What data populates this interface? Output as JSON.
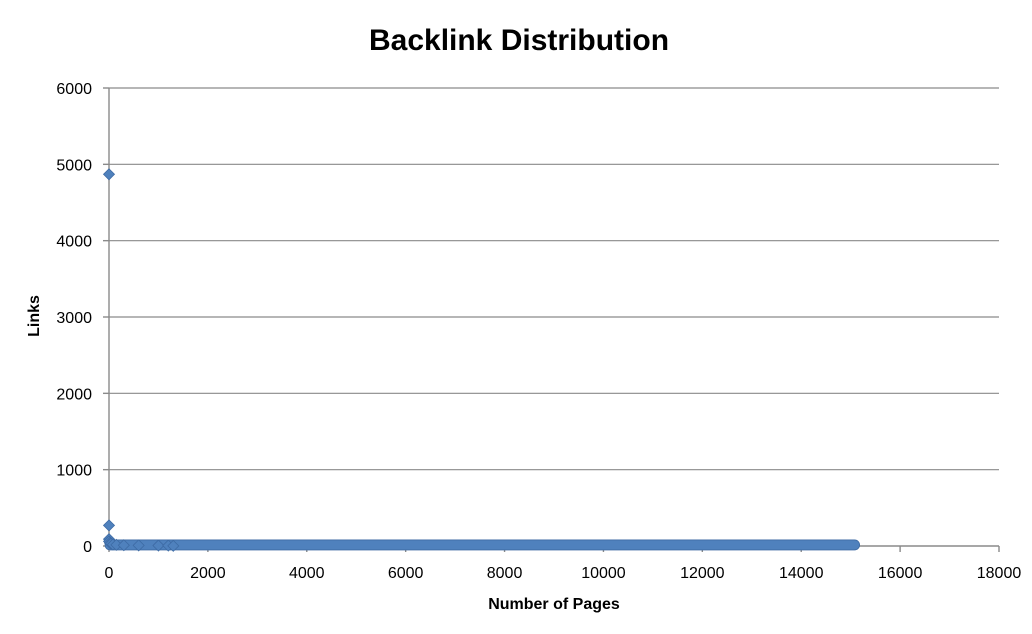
{
  "chart_data": {
    "type": "scatter",
    "title": "Backlink Distribution",
    "xlabel": "Number of Pages",
    "ylabel": "Links",
    "xlim": [
      0,
      18000
    ],
    "ylim": [
      0,
      6000
    ],
    "xticks": [
      0,
      2000,
      4000,
      6000,
      8000,
      10000,
      12000,
      14000,
      16000,
      18000
    ],
    "yticks": [
      0,
      1000,
      2000,
      3000,
      4000,
      5000,
      6000
    ],
    "grid": "horizontal",
    "legend": "none",
    "series_color": "#4f81bd",
    "points": [
      {
        "x": 0,
        "y": 4870
      },
      {
        "x": 0,
        "y": 270
      },
      {
        "x": 0,
        "y": 90
      },
      {
        "x": 0,
        "y": 60
      },
      {
        "x": 20,
        "y": 40
      },
      {
        "x": 40,
        "y": 30
      },
      {
        "x": 80,
        "y": 20
      },
      {
        "x": 150,
        "y": 15
      },
      {
        "x": 300,
        "y": 10
      },
      {
        "x": 600,
        "y": 8
      },
      {
        "x": 1000,
        "y": 6
      },
      {
        "x": 1200,
        "y": 5
      },
      {
        "x": 1300,
        "y": 2
      }
    ],
    "range_band": {
      "x_start": 0,
      "x_end": 15100,
      "y": 1
    }
  }
}
